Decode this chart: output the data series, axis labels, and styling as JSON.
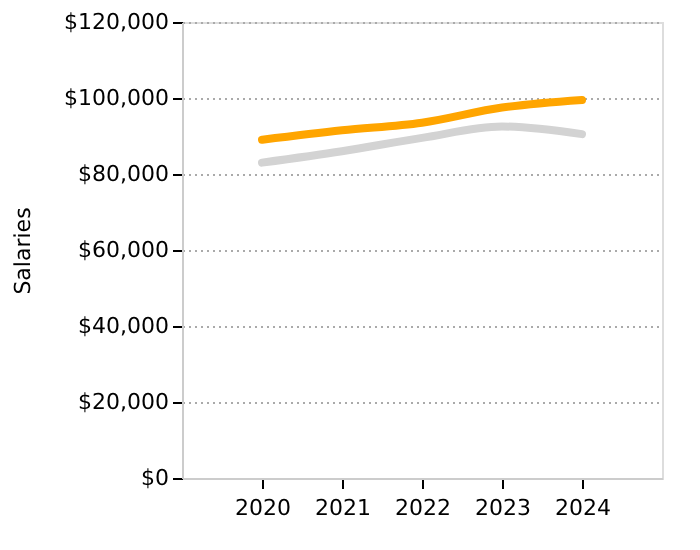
{
  "chart_data": {
    "type": "line",
    "ylabel": "Salaries",
    "x": [
      2020,
      2021,
      2022,
      2023,
      2024
    ],
    "series": [
      {
        "color": "#d3d3d3",
        "values": [
          83000,
          86000,
          89500,
          92500,
          90500
        ]
      },
      {
        "color": "#ffa500",
        "values": [
          89000,
          91500,
          93500,
          97500,
          99500
        ]
      }
    ],
    "xlim": [
      2019,
      2025
    ],
    "xticks": [
      2020,
      2021,
      2022,
      2023,
      2024
    ],
    "ylim": [
      0,
      120000
    ],
    "yticks": [
      {
        "value": 0,
        "label": "$0"
      },
      {
        "value": 20000,
        "label": "$20,000"
      },
      {
        "value": 40000,
        "label": "$40,000"
      },
      {
        "value": 60000,
        "label": "$60,000"
      },
      {
        "value": 80000,
        "label": "$80,000"
      },
      {
        "value": 100000,
        "label": "$100,000"
      },
      {
        "value": 120000,
        "label": "$120,000"
      }
    ],
    "grid": "y",
    "line_style": "solid",
    "marker": "none"
  }
}
